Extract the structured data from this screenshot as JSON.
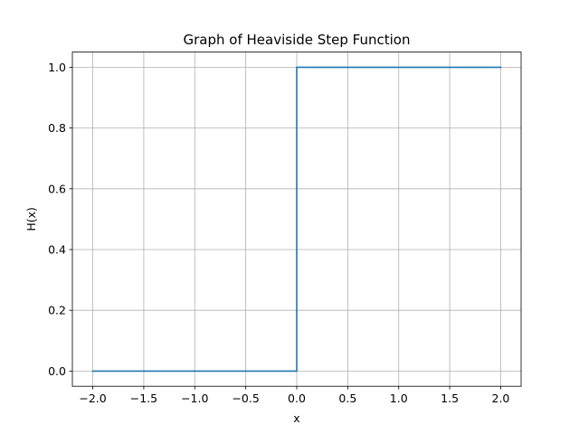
{
  "chart_data": {
    "type": "line",
    "title": "Graph of Heaviside Step Function",
    "xlabel": "x",
    "ylabel": "H(x)",
    "xlim": [
      -2.2,
      2.2
    ],
    "ylim": [
      -0.05,
      1.05
    ],
    "xticks": [
      -2.0,
      -1.5,
      -1.0,
      -0.5,
      0.0,
      0.5,
      1.0,
      1.5,
      2.0
    ],
    "yticks": [
      0.0,
      0.2,
      0.4,
      0.6,
      0.8,
      1.0
    ],
    "xtick_labels": [
      "−2.0",
      "−1.5",
      "−1.0",
      "−0.5",
      "0.0",
      "0.5",
      "1.0",
      "1.5",
      "2.0"
    ],
    "ytick_labels": [
      "0.0",
      "0.2",
      "0.4",
      "0.6",
      "0.8",
      "1.0"
    ],
    "grid": true,
    "series": [
      {
        "x": [
          -2.0,
          0.0,
          0.0,
          2.0
        ],
        "y": [
          0.0,
          0.0,
          1.0,
          1.0
        ],
        "color": "#1f77b4"
      }
    ]
  }
}
